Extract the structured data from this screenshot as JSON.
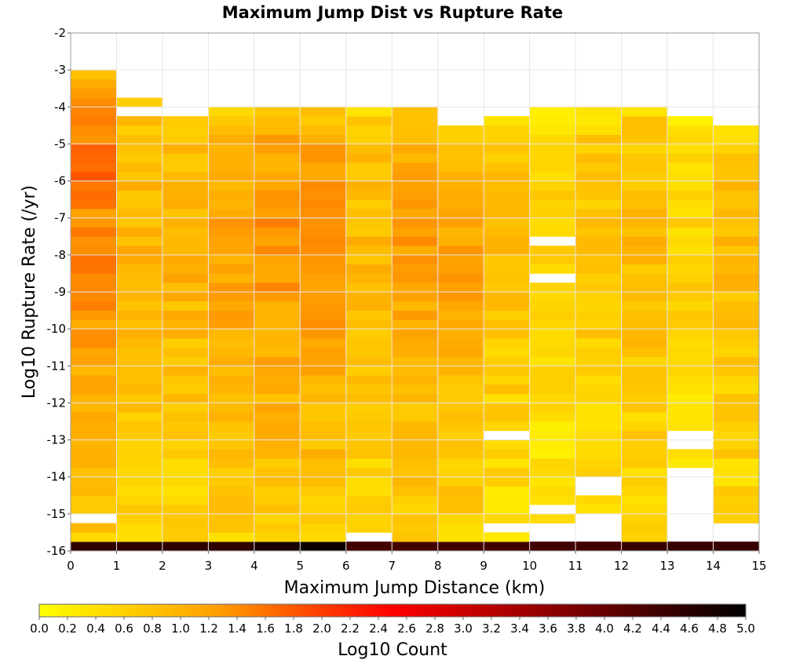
{
  "chart_data": {
    "type": "heatmap",
    "title": "Maximum Jump Dist vs Rupture Rate",
    "xlabel": "Maximum Jump Distance (km)",
    "ylabel": "Log10 Rupture Rate (/yr)",
    "xlim": [
      0,
      15
    ],
    "ylim": [
      -16,
      -2
    ],
    "x_ticks": [
      "0",
      "1",
      "2",
      "3",
      "4",
      "5",
      "6",
      "7",
      "8",
      "9",
      "10",
      "11",
      "12",
      "13",
      "14",
      "15"
    ],
    "y_ticks": [
      "-16",
      "-15",
      "-14",
      "-13",
      "-12",
      "-11",
      "-10",
      "-9",
      "-8",
      "-7",
      "-6",
      "-5",
      "-4",
      "-3",
      "-2"
    ],
    "x_bin_width": 1,
    "y_bin_width": 0.25,
    "y_bin_start": -16,
    "colorbar": {
      "label": "Log10 Count",
      "range": [
        0,
        5
      ],
      "ticks": [
        "0.0",
        "0.2",
        "0.4",
        "0.6",
        "0.8",
        "1.0",
        "1.2",
        "1.4",
        "1.6",
        "1.8",
        "2.0",
        "2.2",
        "2.4",
        "2.6",
        "2.8",
        "3.0",
        "3.2",
        "3.4",
        "3.6",
        "3.8",
        "4.0",
        "4.2",
        "4.4",
        "4.6",
        "4.8",
        "5.0"
      ],
      "colors": [
        "#ffff00",
        "#ff8800",
        "#ff0000",
        "#800000",
        "#000000"
      ]
    },
    "grid": true,
    "column_tops": [
      -3.0,
      -3.75,
      -4.25,
      -4.0,
      -4.0,
      -4.0,
      -3.75,
      -4.0,
      -4.5,
      -4.25,
      -4.0,
      -4.0,
      -3.75,
      -4.25,
      -4.5
    ],
    "bottom_row_values": [
      4.55,
      4.55,
      4.55,
      4.55,
      4.75,
      4.9,
      4.35,
      4.35,
      4.35,
      4.35,
      4.35,
      4.35,
      4.45,
      4.45,
      4.45
    ],
    "column_intensity": [
      1.45,
      1.0,
      1.05,
      1.2,
      1.35,
      1.35,
      0.95,
      1.25,
      1.2,
      0.85,
      0.6,
      0.8,
      0.9,
      0.6,
      0.9
    ],
    "empty_bins": [
      [
        0,
        -15.25
      ],
      [
        1,
        -4.25
      ],
      [
        6,
        -4.0
      ],
      [
        6,
        -15.75
      ],
      [
        9,
        -13.0
      ],
      [
        9,
        -15.5
      ],
      [
        10,
        -7.75
      ],
      [
        10,
        -8.75
      ],
      [
        10,
        -15.0
      ],
      [
        10,
        -15.5
      ],
      [
        10,
        -15.75
      ],
      [
        11,
        -4.0
      ],
      [
        11,
        -14.25
      ],
      [
        11,
        -14.5
      ],
      [
        11,
        -15.25
      ],
      [
        11,
        -15.5
      ],
      [
        11,
        -15.75
      ],
      [
        12,
        -4.0
      ],
      [
        13,
        -13.0
      ],
      [
        13,
        -13.25
      ],
      [
        13,
        -14.0
      ],
      [
        13,
        -14.25
      ],
      [
        13,
        -14.5
      ],
      [
        13,
        -14.75
      ],
      [
        13,
        -15.0
      ],
      [
        13,
        -15.25
      ],
      [
        13,
        -15.5
      ],
      [
        13,
        -15.75
      ],
      [
        14,
        -4.25
      ],
      [
        14,
        -15.5
      ],
      [
        14,
        -15.75
      ]
    ]
  }
}
